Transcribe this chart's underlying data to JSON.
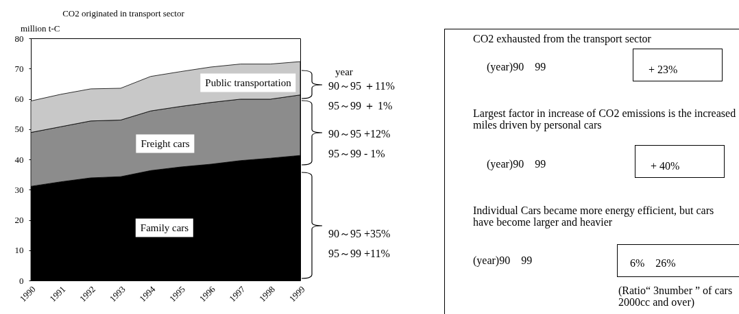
{
  "chart_data": [
    {
      "type": "area",
      "stacked": true,
      "title": "CO2 originated in transport sector",
      "ylabel": "million t-C",
      "categories": [
        "1990",
        "1991",
        "1992",
        "1993",
        "1994",
        "1995",
        "1996",
        "1997",
        "1998",
        "1999"
      ],
      "series": [
        {
          "name": "Family cars",
          "color": "#000000",
          "values": [
            31.1,
            32.6,
            33.9,
            34.3,
            36.3,
            37.5,
            38.4,
            39.6,
            40.4,
            41.3
          ]
        },
        {
          "name": "Freight cars",
          "color": "#8c8c8c",
          "values": [
            17.8,
            18.2,
            18.8,
            18.7,
            19.7,
            20.0,
            20.4,
            20.3,
            19.5,
            20.0
          ]
        },
        {
          "name": "Public transportation",
          "color": "#c8c8c8",
          "values": [
            10.4,
            10.7,
            10.6,
            10.5,
            11.4,
            11.5,
            11.7,
            11.6,
            11.6,
            11.0
          ]
        }
      ],
      "ylim": [
        0,
        80
      ],
      "yticks": [
        0,
        10,
        20,
        30,
        40,
        50,
        60,
        70,
        80
      ],
      "annotations": [
        "year",
        "90～95 ＋11%",
        "95～99 ＋ 1%",
        "90～95 +12%",
        "95～99 - 1%",
        "90～95 +35%",
        "95～99 +11%"
      ]
    },
    {
      "type": "other",
      "annotations": [
        "CO2 exhausted from the transport sector",
        "(year)90　99",
        "+ 23%",
        "Largest factor in increase of CO2 emissions is the increased miles driven by personal cars",
        "(year)90　99",
        "+ 40%",
        "Individual Cars became more energy efficient, but cars have become larger and heavier",
        "(year)90　99",
        "6%　26%",
        "(Ratio“ 3number ” of cars 2000cc and over)"
      ]
    }
  ]
}
